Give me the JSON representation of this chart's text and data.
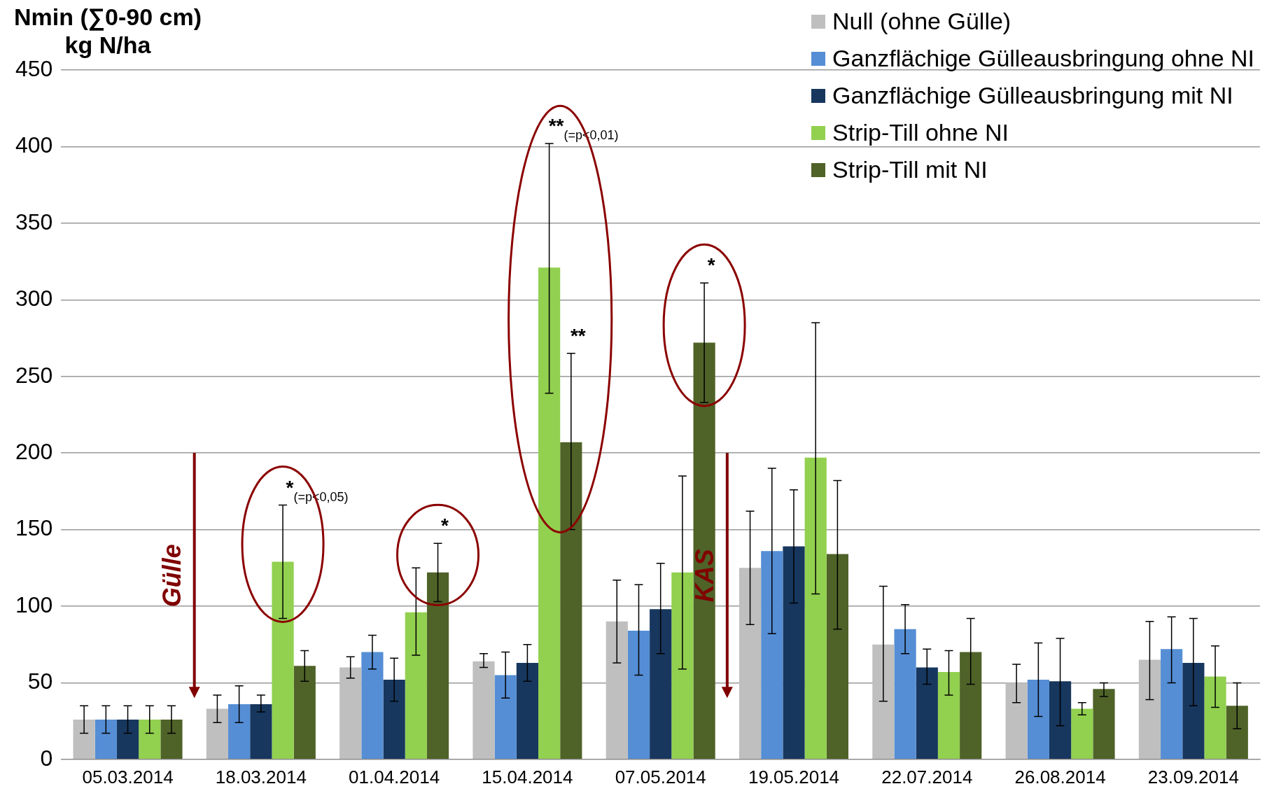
{
  "chart_data": {
    "type": "bar",
    "ylabel": "Nmin (∑0-90 cm)\nkg N/ha",
    "categories": [
      "05.03.2014",
      "18.03.2014",
      "01.04.2014",
      "15.04.2014",
      "07.05.2014",
      "19.05.2014",
      "22.07.2014",
      "26.08.2014",
      "23.09.2014"
    ],
    "series": [
      {
        "name": "Null (ohne Gülle)",
        "color": "#bfbfbf",
        "values": [
          26,
          33,
          60,
          64,
          90,
          125,
          75,
          50,
          65
        ],
        "errors": [
          [
            17,
            35
          ],
          [
            24,
            42
          ],
          [
            53,
            67
          ],
          [
            60,
            69
          ],
          [
            63,
            117
          ],
          [
            88,
            162
          ],
          [
            38,
            113
          ],
          [
            37,
            62
          ],
          [
            39,
            90
          ]
        ]
      },
      {
        "name": "Ganzflächige Gülleausbringung ohne NI",
        "color": "#558ed5",
        "values": [
          26,
          36,
          70,
          55,
          84,
          136,
          85,
          52,
          72
        ],
        "errors": [
          [
            17,
            35
          ],
          [
            24,
            48
          ],
          [
            59,
            81
          ],
          [
            40,
            70
          ],
          [
            55,
            114
          ],
          [
            82,
            190
          ],
          [
            69,
            101
          ],
          [
            28,
            76
          ],
          [
            50,
            93
          ]
        ]
      },
      {
        "name": "Ganzflächige Gülleausbringung mit NI",
        "color": "#17375e",
        "values": [
          26,
          36,
          52,
          63,
          98,
          139,
          60,
          51,
          63
        ],
        "errors": [
          [
            17,
            35
          ],
          [
            31,
            42
          ],
          [
            38,
            66
          ],
          [
            51,
            75
          ],
          [
            69,
            128
          ],
          [
            102,
            176
          ],
          [
            49,
            72
          ],
          [
            22,
            79
          ],
          [
            35,
            92
          ]
        ]
      },
      {
        "name": "Strip-Till ohne NI",
        "color": "#92d050",
        "values": [
          26,
          129,
          96,
          321,
          122,
          197,
          57,
          33,
          54
        ],
        "errors": [
          [
            17,
            35
          ],
          [
            92,
            166
          ],
          [
            68,
            125
          ],
          [
            239,
            402
          ],
          [
            59,
            185
          ],
          [
            108,
            285
          ],
          [
            42,
            71
          ],
          [
            29,
            37
          ],
          [
            34,
            74
          ]
        ]
      },
      {
        "name": "Strip-Till mit NI",
        "color": "#4f6228",
        "values": [
          26,
          61,
          122,
          207,
          272,
          134,
          70,
          46,
          35
        ],
        "errors": [
          [
            17,
            35
          ],
          [
            51,
            71
          ],
          [
            103,
            141
          ],
          [
            150,
            265
          ],
          [
            233,
            311
          ],
          [
            85,
            182
          ],
          [
            49,
            92
          ],
          [
            41,
            50
          ],
          [
            20,
            50
          ]
        ]
      }
    ],
    "ylim": [
      0,
      450
    ],
    "yticks": [
      0,
      50,
      100,
      150,
      200,
      250,
      300,
      350,
      400,
      450
    ],
    "grid": "y",
    "legend": "top right",
    "annotations": [
      "*$_{(=p<0,05)}$",
      "*",
      "**$_{(=p<0,01)}$",
      "**",
      "*",
      "Gülle",
      "KAS"
    ]
  }
}
